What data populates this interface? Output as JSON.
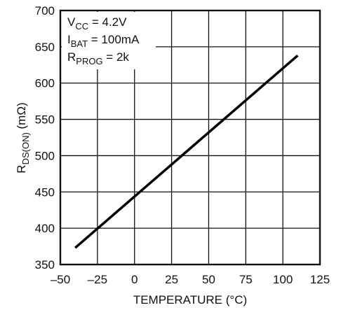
{
  "chart_data": {
    "type": "line",
    "xlabel": "TEMPERATURE (°C)",
    "ylabel_main": "R",
    "ylabel_sub": "DS(ON)",
    "ylabel_unit": " (mΩ)",
    "xlim": [
      -50,
      125
    ],
    "ylim": [
      350,
      700
    ],
    "x_ticks": [
      -50,
      -25,
      0,
      25,
      50,
      75,
      100,
      125
    ],
    "y_ticks": [
      350,
      400,
      450,
      500,
      550,
      600,
      650,
      700
    ],
    "x_tick_labels": [
      "–50",
      "–25",
      "0",
      "25",
      "50",
      "75",
      "100",
      "125"
    ],
    "y_tick_labels": [
      "350",
      "400",
      "450",
      "500",
      "550",
      "600",
      "650",
      "700"
    ],
    "grid": true,
    "series": [
      {
        "x": [
          -40,
          110
        ],
        "y": [
          373,
          638
        ]
      }
    ],
    "annotations": [
      {
        "main": "V",
        "sub": "CC",
        "rest": " = 4.2V"
      },
      {
        "main": "I",
        "sub": "BAT",
        "rest": " = 100mA"
      },
      {
        "main": "R",
        "sub": "PROG",
        "rest": " = 2k"
      }
    ]
  }
}
